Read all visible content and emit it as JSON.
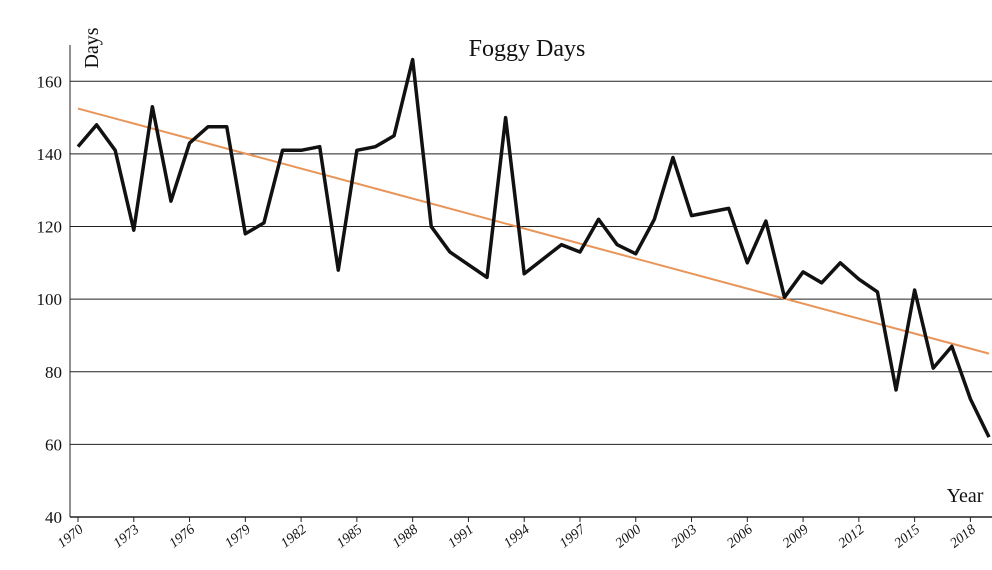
{
  "chart_data": {
    "type": "line",
    "title": "Foggy Days",
    "y_label": "Days",
    "x_label": "Year",
    "x": [
      1970,
      1971,
      1972,
      1973,
      1974,
      1975,
      1976,
      1977,
      1978,
      1979,
      1980,
      1981,
      1982,
      1983,
      1984,
      1985,
      1986,
      1987,
      1988,
      1989,
      1990,
      1991,
      1992,
      1993,
      1994,
      1995,
      1996,
      1997,
      1998,
      1999,
      2000,
      2001,
      2002,
      2003,
      2004,
      2005,
      2006,
      2007,
      2008,
      2009,
      2010,
      2011,
      2012,
      2013,
      2014,
      2015,
      2016,
      2017,
      2018,
      2019
    ],
    "series": [
      {
        "color": "#111111",
        "values": [
          142,
          148,
          141,
          119,
          153,
          127,
          143,
          147.5,
          147.5,
          118,
          121,
          141,
          141,
          142,
          108,
          141,
          142,
          145,
          166,
          120,
          113,
          109.5,
          106,
          150,
          107,
          111,
          115,
          113,
          122,
          115,
          112.5,
          122,
          139,
          123,
          124,
          125,
          110,
          121.5,
          100.5,
          107.5,
          104.5,
          110,
          105.5,
          102,
          75,
          102.5,
          81,
          87,
          72.5,
          62
        ]
      }
    ],
    "trend": {
      "color": "#e8955a",
      "x": [
        1970,
        2019
      ],
      "values": [
        152.5,
        85
      ]
    },
    "xlim": [
      1970,
      2019
    ],
    "ylim": [
      40,
      170
    ],
    "xticks": [
      1970,
      1973,
      1976,
      1979,
      1982,
      1985,
      1988,
      1991,
      1994,
      1997,
      2000,
      2003,
      2006,
      2009,
      2012,
      2015,
      2018
    ],
    "yticks": [
      40,
      60,
      80,
      100,
      120,
      140,
      160
    ],
    "grid": true
  }
}
